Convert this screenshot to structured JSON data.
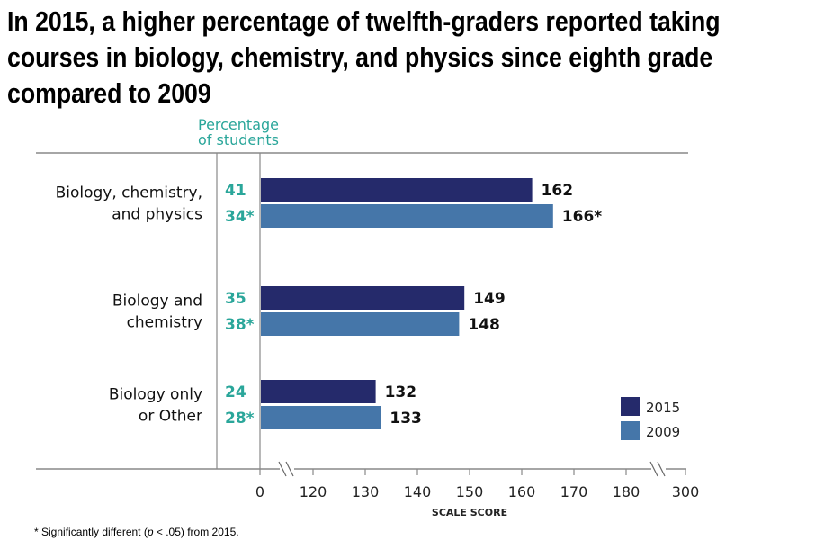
{
  "header": {
    "title_lines": [
      "In 2015, a higher percentage of twelfth-graders reported taking",
      "courses in biology, chemistry, and physics since eighth grade",
      "compared to 2009"
    ],
    "percent_column_title_lines": [
      "Percentage",
      "of students"
    ]
  },
  "footnote": {
    "prefix": "* Significantly different (",
    "p": "p",
    "suffix": " < .05) from 2015."
  },
  "colors": {
    "series_2015": "#252a6b",
    "series_2009": "#4576a9",
    "percent_text": "#2aa69a",
    "axis": "#888888"
  },
  "chart_data": {
    "type": "bar",
    "orientation": "horizontal",
    "title": "In 2015, a higher percentage of twelfth-graders reported taking courses in biology, chemistry, and physics since eighth grade compared to 2009",
    "xlabel": "SCALE SCORE",
    "ylabel": "",
    "x_ticks": [
      "0",
      "120",
      "130",
      "140",
      "150",
      "160",
      "170",
      "180",
      "300"
    ],
    "x_axis_breaks": [
      "between 0 and 120",
      "between 180 and 300"
    ],
    "xlim": [
      120,
      300
    ],
    "grid": false,
    "legend": {
      "position": "bottom-right",
      "entries": [
        "2015",
        "2009"
      ]
    },
    "categories": [
      {
        "label_lines": [
          "Biology, chemistry,",
          "and physics"
        ]
      },
      {
        "label_lines": [
          "Biology and",
          "chemistry"
        ]
      },
      {
        "label_lines": [
          "Biology only",
          "or Other"
        ]
      }
    ],
    "series": [
      {
        "name": "2015",
        "values": [
          162,
          149,
          132
        ],
        "value_labels": [
          "162",
          "149",
          "132"
        ],
        "percent_labels": [
          "41",
          "35",
          "24"
        ]
      },
      {
        "name": "2009",
        "values": [
          166,
          148,
          133
        ],
        "value_labels": [
          "166*",
          "148",
          "133"
        ],
        "percent_labels": [
          "34*",
          "38*",
          "28*"
        ]
      }
    ]
  }
}
